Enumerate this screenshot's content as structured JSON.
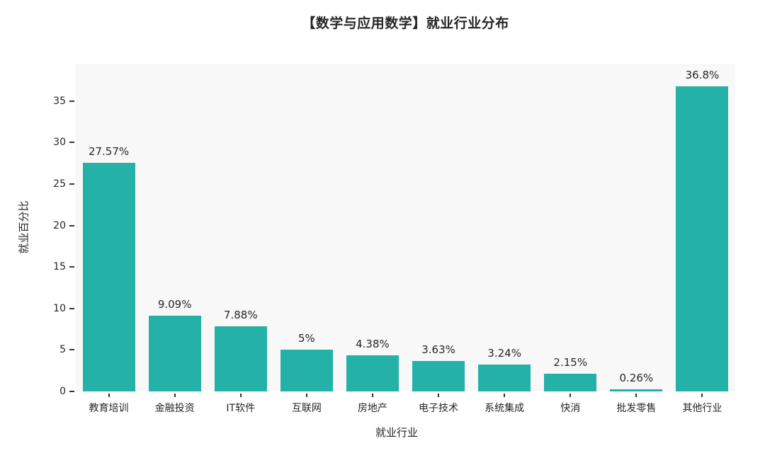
{
  "chart_data": {
    "type": "bar",
    "title": "【数学与应用数学】就业行业分布",
    "xlabel": "就业行业",
    "ylabel": "就业百分比",
    "categories": [
      "教育培训",
      "金融投资",
      "IT软件",
      "互联网",
      "房地产",
      "电子技术",
      "系统集成",
      "快消",
      "批发零售",
      "其他行业"
    ],
    "values": [
      27.57,
      9.09,
      7.88,
      5,
      4.38,
      3.63,
      3.24,
      2.15,
      0.26,
      36.8
    ],
    "bar_labels": [
      "27.57%",
      "9.09%",
      "7.88%",
      "5%",
      "4.38%",
      "3.63%",
      "3.24%",
      "2.15%",
      "0.26%",
      "36.8%"
    ],
    "yticks": [
      0,
      5,
      10,
      15,
      20,
      25,
      30,
      35
    ],
    "ylim": [
      0,
      39.5
    ],
    "grid": false,
    "legend_position": "none",
    "colors": {
      "bar": "#23b1a8",
      "plot_background": "#f8f8f8",
      "page_background": "#ffffff",
      "text": "#262626",
      "tick": "#333333"
    }
  }
}
